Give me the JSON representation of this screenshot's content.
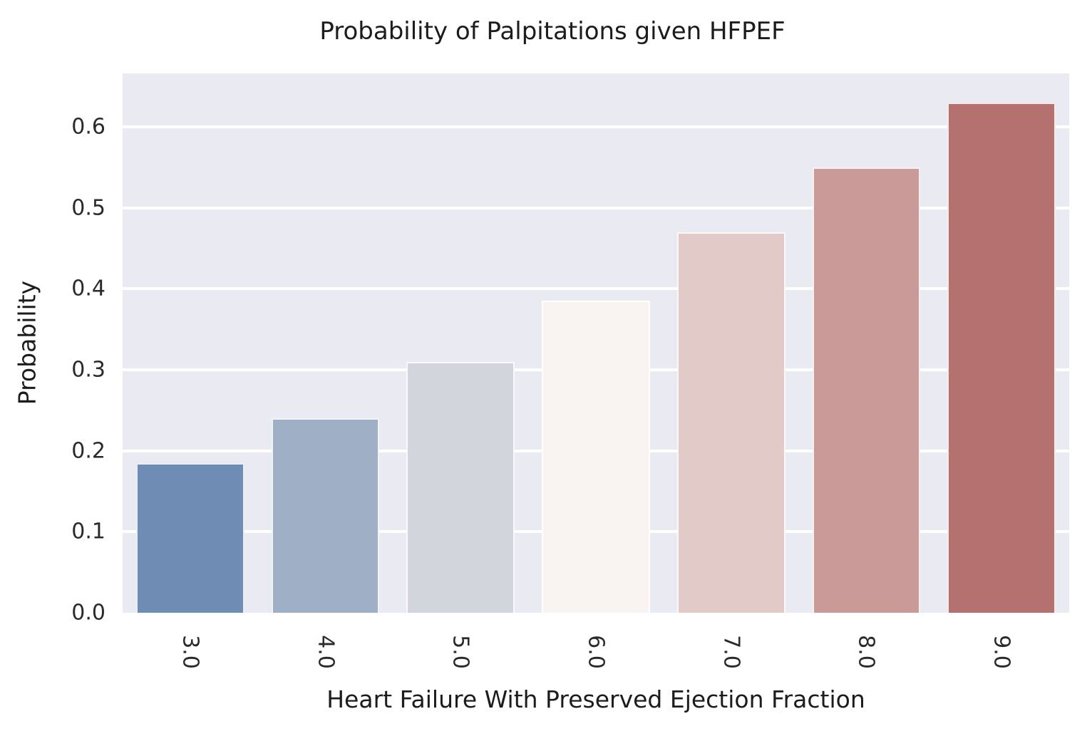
{
  "chart_data": {
    "type": "bar",
    "title": "Probability of Palpitations given HFPEF",
    "xlabel": "Heart Failure With Preserved Ejection Fraction",
    "ylabel": "Probability",
    "categories": [
      "3.0",
      "4.0",
      "5.0",
      "6.0",
      "7.0",
      "8.0",
      "9.0"
    ],
    "values": [
      0.185,
      0.24,
      0.31,
      0.385,
      0.47,
      0.55,
      0.63
    ],
    "bar_colors": [
      "#6e8cb4",
      "#9fafc6",
      "#d2d5dc",
      "#f9f3f1",
      "#e2cac8",
      "#ca9a98",
      "#b4716f"
    ],
    "y_ticks": [
      "0.0",
      "0.1",
      "0.2",
      "0.3",
      "0.4",
      "0.5",
      "0.6"
    ],
    "ylim": [
      0,
      0.666
    ],
    "grid": true,
    "grid_color": "#ffffff",
    "plot_bg": "#eaeaf2",
    "legend_position": "none"
  }
}
